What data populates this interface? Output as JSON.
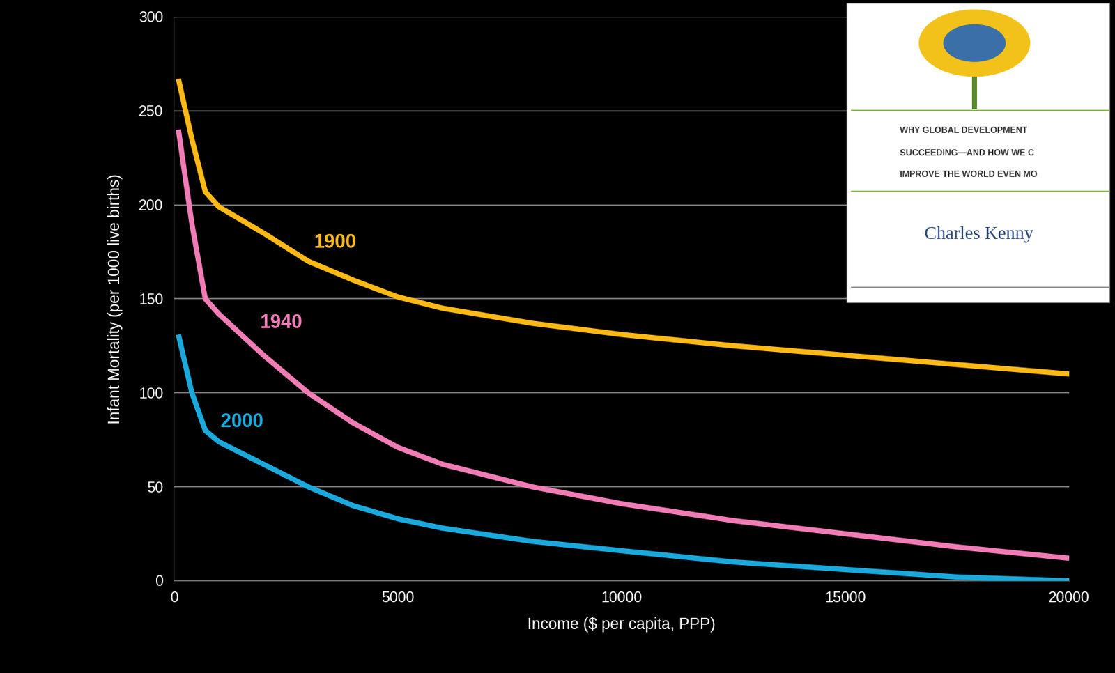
{
  "chart_data": {
    "type": "line",
    "x_label": "Income ($ per capita, PPP)",
    "y_label": "Infant Mortality (per 1000 live births)",
    "x": [
      100,
      400,
      700,
      1000,
      2000,
      3000,
      4000,
      5000,
      6000,
      8000,
      10000,
      12500,
      15000,
      17500,
      20000
    ],
    "series": [
      {
        "name": "1900",
        "color": "#ffb915",
        "values": [
          267,
          235,
          207,
          199,
          185,
          170,
          160,
          151,
          145,
          137,
          131,
          125,
          120,
          115,
          110
        ]
      },
      {
        "name": "1940",
        "color": "#f07cb6",
        "values": [
          240,
          190,
          150,
          142,
          120,
          100,
          84,
          71,
          62,
          50,
          41,
          32,
          25,
          18,
          12
        ]
      },
      {
        "name": "2000",
        "color": "#1aa9dc",
        "values": [
          131,
          100,
          80,
          74,
          62,
          50,
          40,
          33,
          28,
          21,
          16,
          10,
          6,
          2,
          0
        ]
      }
    ],
    "xlim": [
      0,
      20000
    ],
    "ylim": [
      0,
      300
    ],
    "xticks": [
      0,
      5000,
      10000,
      15000,
      20000
    ],
    "yticks": [
      0,
      50,
      100,
      150,
      200,
      250,
      300
    ],
    "grid": true,
    "annotations": [
      "WHY GLOBAL DEVELOPMENT",
      "SUCCEEDING—AND HOW WE C",
      "IMPROVE THE WORLD EVEN MO",
      "Charles Kenny"
    ]
  }
}
